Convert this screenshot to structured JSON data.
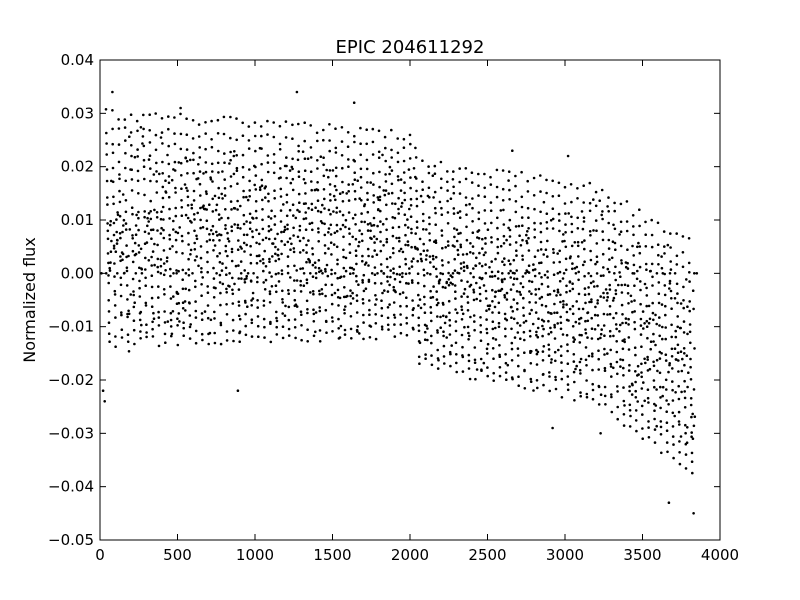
{
  "chart_data": {
    "type": "scatter",
    "title": "EPIC 204611292",
    "xlabel": "",
    "ylabel": "Normalized flux",
    "xlim": [
      0,
      4000
    ],
    "ylim": [
      -0.05,
      0.04
    ],
    "grid": false,
    "legend": "none",
    "marker_color": "#000000",
    "x_ticks": [
      0,
      500,
      1000,
      1500,
      2000,
      2500,
      3000,
      3500,
      4000
    ],
    "y_ticks": [
      -0.05,
      -0.04,
      -0.03,
      -0.02,
      -0.01,
      0.0,
      0.01,
      0.02,
      0.03,
      0.04
    ],
    "x_tick_labels": [
      "0",
      "500",
      "1000",
      "1500",
      "2000",
      "2500",
      "3000",
      "3500",
      "4000"
    ],
    "y_tick_labels": [
      "−0.05",
      "−0.04",
      "−0.03",
      "−0.02",
      "−0.01",
      "0.00",
      "0.01",
      "0.02",
      "0.03",
      "0.04"
    ],
    "cycle_period": 40,
    "cycle_start": 40,
    "points_per_cycle": 20,
    "segments": [
      {
        "x_start": 0,
        "x_end": 2000,
        "max_start": 0.03,
        "max_end": 0.026,
        "min_start": -0.015,
        "min_end": -0.013
      },
      {
        "x_start": 2000,
        "x_end": 3200,
        "max_start": 0.021,
        "max_end": 0.016,
        "min_start": -0.018,
        "min_end": -0.026
      },
      {
        "x_start": 3200,
        "x_end": 3840,
        "max_start": 0.016,
        "max_end": 0.005,
        "min_start": -0.026,
        "min_end": -0.04
      }
    ],
    "outliers": [
      {
        "x": 80,
        "y": 0.034
      },
      {
        "x": 1270,
        "y": 0.034
      },
      {
        "x": 520,
        "y": 0.031
      },
      {
        "x": 1640,
        "y": 0.032
      },
      {
        "x": 2660,
        "y": 0.023
      },
      {
        "x": 3020,
        "y": 0.022
      },
      {
        "x": 890,
        "y": -0.022
      },
      {
        "x": 30,
        "y": -0.024
      },
      {
        "x": 20,
        "y": -0.022
      },
      {
        "x": 2920,
        "y": -0.029
      },
      {
        "x": 3230,
        "y": -0.03
      },
      {
        "x": 3670,
        "y": -0.043
      },
      {
        "x": 3830,
        "y": -0.045
      },
      {
        "x": 10,
        "y": 0.0
      },
      {
        "x": 40,
        "y": 0.0
      },
      {
        "x": 3850,
        "y": 0.0
      }
    ]
  }
}
